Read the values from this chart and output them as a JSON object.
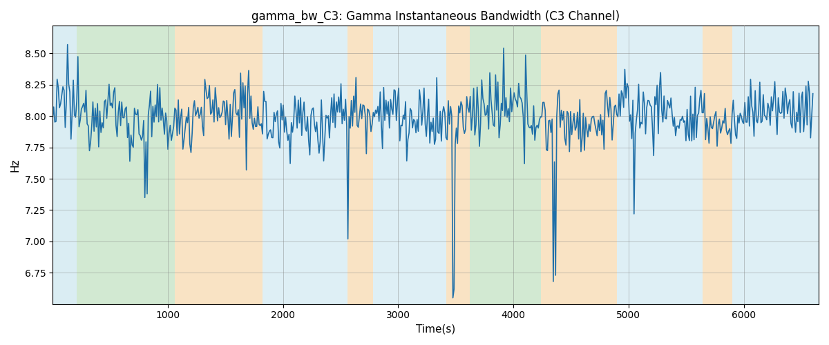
{
  "title": "gamma_bw_C3: Gamma Instantaneous Bandwidth (C3 Channel)",
  "xlabel": "Time(s)",
  "ylabel": "Hz",
  "line_color": "#1f6fa8",
  "line_width": 1.2,
  "ylim": [
    6.5,
    8.72
  ],
  "xlim": [
    0,
    6650
  ],
  "figsize": [
    12.0,
    5.0
  ],
  "dpi": 100,
  "yticks": [
    6.75,
    7.0,
    7.25,
    7.5,
    7.75,
    8.0,
    8.25,
    8.5
  ],
  "xticks": [
    1000,
    2000,
    3000,
    4000,
    5000,
    6000
  ],
  "bg_regions": [
    {
      "xstart": 0,
      "xend": 210,
      "color": "#add8e6",
      "alpha": 0.45
    },
    {
      "xstart": 210,
      "xend": 1060,
      "color": "#90c990",
      "alpha": 0.4
    },
    {
      "xstart": 1060,
      "xend": 1820,
      "color": "#f5c98a",
      "alpha": 0.5
    },
    {
      "xstart": 1820,
      "xend": 2560,
      "color": "#add8e6",
      "alpha": 0.4
    },
    {
      "xstart": 2560,
      "xend": 2780,
      "color": "#f5c98a",
      "alpha": 0.5
    },
    {
      "xstart": 2780,
      "xend": 3420,
      "color": "#add8e6",
      "alpha": 0.4
    },
    {
      "xstart": 3420,
      "xend": 3620,
      "color": "#f5c98a",
      "alpha": 0.5
    },
    {
      "xstart": 3620,
      "xend": 4240,
      "color": "#90c990",
      "alpha": 0.4
    },
    {
      "xstart": 4240,
      "xend": 4900,
      "color": "#f5c98a",
      "alpha": 0.5
    },
    {
      "xstart": 4900,
      "xend": 5640,
      "color": "#add8e6",
      "alpha": 0.4
    },
    {
      "xstart": 5640,
      "xend": 5900,
      "color": "#f5c98a",
      "alpha": 0.5
    },
    {
      "xstart": 5900,
      "xend": 6650,
      "color": "#add8e6",
      "alpha": 0.4
    }
  ],
  "seed": 12345,
  "n_points": 660,
  "base_mean": 8.0,
  "base_std": 0.13
}
